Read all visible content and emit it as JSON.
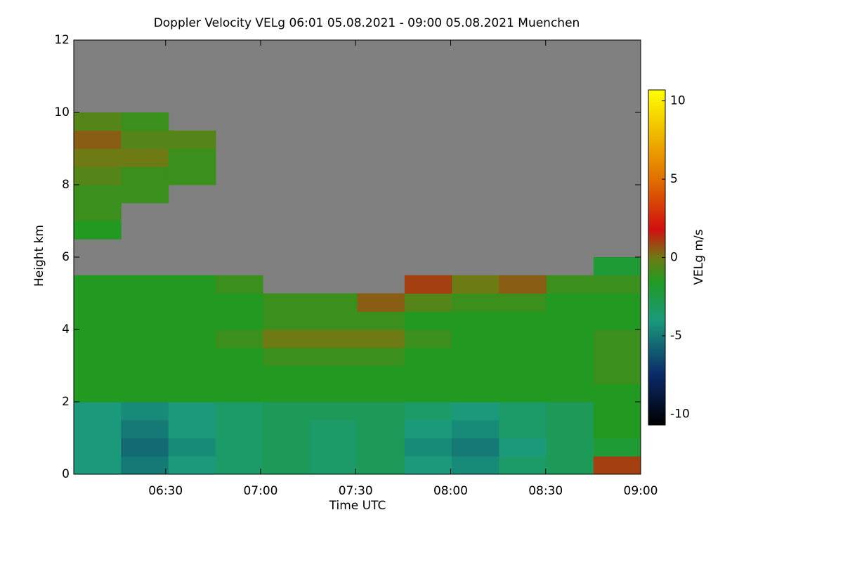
{
  "chart_data": {
    "type": "heatmap",
    "title": "Doppler Velocity VELg   06:01 05.08.2021 - 09:00 05.08.2021 Muenchen",
    "xlabel": "Time UTC",
    "ylabel": "Height km",
    "colorbar_label": "VELg m/s",
    "xlim": [
      6.0167,
      9.0
    ],
    "xticks": [
      {
        "value": 6.5,
        "label": "06:30"
      },
      {
        "value": 7.0,
        "label": "07:00"
      },
      {
        "value": 7.5,
        "label": "07:30"
      },
      {
        "value": 8.0,
        "label": "08:00"
      },
      {
        "value": 8.5,
        "label": "08:30"
      },
      {
        "value": 9.0,
        "label": "09:00"
      }
    ],
    "ylim": [
      0,
      12
    ],
    "yticks": [
      0,
      2,
      4,
      6,
      8,
      10,
      12
    ],
    "clim": [
      -10.7,
      10.7
    ],
    "cticks": [
      -10,
      -5,
      0,
      5,
      10
    ],
    "nodata_color": "#808080",
    "colorscale": [
      {
        "value": -10.7,
        "color": "#000000"
      },
      {
        "value": -7.5,
        "color": "#0a2a6a"
      },
      {
        "value": -4,
        "color": "#1a9a7a"
      },
      {
        "value": -1.5,
        "color": "#229a22"
      },
      {
        "value": 0,
        "color": "#6e7a14"
      },
      {
        "value": 1.8,
        "color": "#d01010"
      },
      {
        "value": 5,
        "color": "#e07000"
      },
      {
        "value": 10.7,
        "color": "#ffff00"
      }
    ],
    "x": [
      6.141,
      6.39,
      6.639,
      6.887,
      7.136,
      7.384,
      7.633,
      7.882,
      8.13,
      8.379,
      8.628,
      8.876
    ],
    "y": [
      0.25,
      0.75,
      1.25,
      1.75,
      2.25,
      2.75,
      3.25,
      3.75,
      4.25,
      4.75,
      5.25,
      5.75,
      6.25,
      6.75,
      7.25,
      7.75,
      8.25,
      8.75,
      9.25,
      9.75,
      10.25,
      10.75,
      11.25,
      11.75
    ],
    "values": [
      [
        -4,
        -5,
        -4,
        -3.5,
        -3,
        -3.5,
        -3,
        -4,
        -4.5,
        -3.5,
        -3,
        1
      ],
      [
        -4,
        -5.5,
        -4.5,
        -3.5,
        -3,
        -3.5,
        -3,
        -4.5,
        -5,
        -4,
        -3,
        -2
      ],
      [
        -4,
        -5,
        -4,
        -3.5,
        -3,
        -3.5,
        -3,
        -4,
        -4.5,
        -3.5,
        -3,
        -1.5
      ],
      [
        -4,
        -4.5,
        -4,
        -3.5,
        -3,
        -3,
        -3,
        -3.5,
        -4,
        -3.5,
        -3,
        -1.5
      ],
      [
        -1.5,
        -1.5,
        -1.5,
        -1.5,
        -1.5,
        -1.5,
        -1.5,
        -1.5,
        -1.5,
        -1.5,
        -1.5,
        -1.5
      ],
      [
        -1.5,
        -1.5,
        -1.5,
        -1.5,
        -1.5,
        -1.5,
        -1.5,
        -1.5,
        -1.5,
        -1.5,
        -1.5,
        -1
      ],
      [
        -1.5,
        -1.5,
        -1.5,
        -1.5,
        -1,
        -1,
        -1,
        -1.5,
        -1.5,
        -1.5,
        -1.5,
        -1
      ],
      [
        -1.5,
        -1.5,
        -1.5,
        -1,
        0,
        0,
        0,
        -1,
        -1.5,
        -1.5,
        -1.5,
        -1
      ],
      [
        -1.5,
        -1.5,
        -1.5,
        -1.5,
        -1,
        -1,
        -1,
        -1.5,
        -1.5,
        -1.5,
        -1.5,
        -1.5
      ],
      [
        -1.5,
        -1.5,
        -1.5,
        -1.5,
        -1,
        -1,
        0.5,
        -0.5,
        -1,
        -1,
        -1.5,
        -1.5
      ],
      [
        -1.5,
        -1.5,
        -1.5,
        -1,
        null,
        null,
        null,
        1,
        0,
        0.5,
        -1,
        -1
      ],
      [
        null,
        null,
        null,
        null,
        null,
        null,
        null,
        null,
        null,
        null,
        null,
        -2
      ],
      [
        null,
        null,
        null,
        null,
        null,
        null,
        null,
        null,
        null,
        null,
        null,
        null
      ],
      [
        -1.5,
        null,
        null,
        null,
        null,
        null,
        null,
        null,
        null,
        null,
        null,
        null
      ],
      [
        -1,
        null,
        null,
        null,
        null,
        null,
        null,
        null,
        null,
        null,
        null,
        null
      ],
      [
        -1,
        -1,
        null,
        null,
        null,
        null,
        null,
        null,
        null,
        null,
        null,
        null
      ],
      [
        -0.5,
        -1,
        -1,
        null,
        null,
        null,
        null,
        null,
        null,
        null,
        null,
        null
      ],
      [
        0,
        0,
        -1,
        null,
        null,
        null,
        null,
        null,
        null,
        null,
        null,
        null
      ],
      [
        0.5,
        -0.5,
        -0.5,
        null,
        null,
        null,
        null,
        null,
        null,
        null,
        null,
        null
      ],
      [
        -0.5,
        -1,
        null,
        null,
        null,
        null,
        null,
        null,
        null,
        null,
        null,
        null
      ],
      [
        null,
        null,
        null,
        null,
        null,
        null,
        null,
        null,
        null,
        null,
        null,
        null
      ],
      [
        null,
        null,
        null,
        null,
        null,
        null,
        null,
        null,
        null,
        null,
        null,
        null
      ],
      [
        null,
        null,
        null,
        null,
        null,
        null,
        null,
        null,
        null,
        null,
        null,
        null
      ],
      [
        null,
        null,
        null,
        null,
        null,
        null,
        null,
        null,
        null,
        null,
        null,
        null
      ]
    ]
  }
}
